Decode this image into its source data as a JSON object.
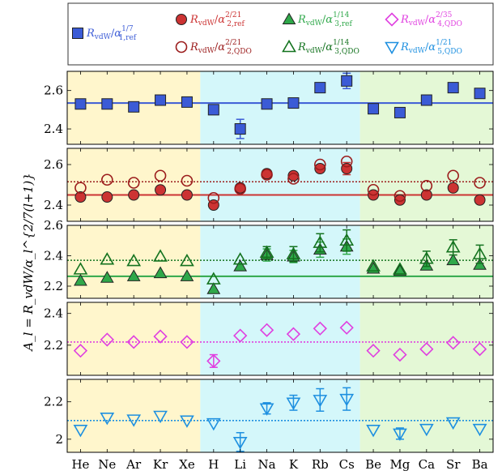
{
  "chart_data": [
    {
      "type": "scatter",
      "panel": "a",
      "categories": [
        "He",
        "Ne",
        "Ar",
        "Kr",
        "Xe",
        "H",
        "Li",
        "Na",
        "K",
        "Rb",
        "Cs",
        "Be",
        "Mg",
        "Ca",
        "Sr",
        "Ba"
      ],
      "ylim": [
        2.32,
        2.7
      ],
      "yticks": [
        2.4,
        2.6
      ],
      "series": [
        {
          "name": "R_vdW/α_{1,ref}^{1/7}",
          "marker": "square-filled",
          "color": "#3b5bd6",
          "values": [
            2.53,
            2.53,
            2.515,
            2.55,
            2.54,
            2.5,
            2.4,
            2.53,
            2.535,
            2.615,
            2.65,
            2.505,
            2.485,
            2.55,
            2.615,
            2.585
          ],
          "errors": [
            0.012,
            0.012,
            0.012,
            0.012,
            0.012,
            0.015,
            0.05,
            0.01,
            0.01,
            0.02,
            0.04,
            0.015,
            0.012,
            0.01,
            0.015,
            0.015
          ],
          "mean": 2.535
        }
      ]
    },
    {
      "type": "scatter",
      "panel": "b",
      "categories": [
        "He",
        "Ne",
        "Ar",
        "Kr",
        "Xe",
        "H",
        "Li",
        "Na",
        "K",
        "Rb",
        "Cs",
        "Be",
        "Mg",
        "Ca",
        "Sr",
        "Ba"
      ],
      "ylim": [
        2.32,
        2.68
      ],
      "yticks": [
        2.4,
        2.6
      ],
      "series": [
        {
          "name": "R_vdW/α_{2,ref}^{2/21}",
          "marker": "circle-filled",
          "color": "#cc3333",
          "values": [
            2.44,
            2.44,
            2.45,
            2.475,
            2.45,
            2.4,
            2.485,
            2.555,
            2.545,
            2.58,
            2.58,
            2.45,
            2.425,
            2.45,
            2.485,
            2.425
          ],
          "errors": [
            0.01,
            0.01,
            0.01,
            0.01,
            0.01,
            0.015,
            0.015,
            0.02,
            0.02,
            0.02,
            0.03,
            0.01,
            0.01,
            0.01,
            0.01,
            0.01
          ],
          "mean": 2.45
        },
        {
          "name": "R_vdW/α_{2,QDO}^{2/21}",
          "marker": "circle-open",
          "color": "#9b1c1c",
          "values": [
            2.485,
            2.525,
            2.51,
            2.545,
            2.52,
            2.435,
            2.48,
            2.55,
            2.53,
            2.6,
            2.615,
            2.475,
            2.445,
            2.495,
            2.545,
            2.51
          ],
          "errors": [
            0.005,
            0.005,
            0.005,
            0.005,
            0.005,
            0.01,
            0.01,
            0.02,
            0.02,
            0.02,
            0.02,
            0.005,
            0.005,
            0.005,
            0.005,
            0.005
          ],
          "mean": 2.515
        }
      ]
    },
    {
      "type": "scatter",
      "panel": "c",
      "categories": [
        "He",
        "Ne",
        "Ar",
        "Kr",
        "Xe",
        "H",
        "Li",
        "Na",
        "K",
        "Rb",
        "Cs",
        "Be",
        "Mg",
        "Ca",
        "Sr",
        "Ba"
      ],
      "ylim": [
        2.12,
        2.6
      ],
      "yticks": [
        2.2,
        2.4,
        2.6
      ],
      "series": [
        {
          "name": "R_vdW/α_{3,ref}^{1/14}",
          "marker": "triangle-up-filled",
          "color": "#2fa84a",
          "values": [
            2.235,
            2.255,
            2.265,
            2.285,
            2.265,
            2.18,
            2.33,
            2.405,
            2.395,
            2.44,
            2.46,
            2.315,
            2.3,
            2.335,
            2.37,
            2.34
          ],
          "errors": [
            0.01,
            0.01,
            0.01,
            0.01,
            0.01,
            0.015,
            0.02,
            0.04,
            0.04,
            0.05,
            0.05,
            0.01,
            0.01,
            0.01,
            0.01,
            0.01
          ],
          "mean": 2.265
        },
        {
          "name": "R_vdW/α_{3,QDO}^{1/14}",
          "marker": "triangle-up-open",
          "color": "#14731f",
          "values": [
            2.31,
            2.375,
            2.365,
            2.395,
            2.365,
            2.245,
            2.375,
            2.42,
            2.41,
            2.485,
            2.5,
            2.33,
            2.31,
            2.38,
            2.455,
            2.41
          ],
          "errors": [
            0.01,
            0.01,
            0.01,
            0.01,
            0.01,
            0.015,
            0.02,
            0.04,
            0.05,
            0.06,
            0.07,
            0.02,
            0.02,
            0.05,
            0.05,
            0.06
          ],
          "mean": 2.37
        }
      ]
    },
    {
      "type": "scatter",
      "panel": "d",
      "categories": [
        "He",
        "Ne",
        "Ar",
        "Kr",
        "Xe",
        "H",
        "Li",
        "Na",
        "K",
        "Rb",
        "Cs",
        "Be",
        "Mg",
        "Ca",
        "Sr",
        "Ba"
      ],
      "ylim": [
        2.01,
        2.47
      ],
      "yticks": [
        2.2,
        2.4
      ],
      "series": [
        {
          "name": "R_vdW/α_{4,QDO}^{2/35}",
          "marker": "diamond-open",
          "color": "#e040e0",
          "values": [
            2.165,
            2.235,
            2.22,
            2.255,
            2.22,
            2.1,
            2.26,
            2.295,
            2.27,
            2.305,
            2.31,
            2.165,
            2.14,
            2.175,
            2.215,
            2.175
          ],
          "errors": [
            0.02,
            0.01,
            0.01,
            0.01,
            0.01,
            0.04,
            0.02,
            0.03,
            0.02,
            0.03,
            0.03,
            0.02,
            0.03,
            0.02,
            0.01,
            0.02
          ],
          "mean": 2.22
        }
      ]
    },
    {
      "type": "scatter",
      "panel": "e",
      "categories": [
        "He",
        "Ne",
        "Ar",
        "Kr",
        "Xe",
        "H",
        "Li",
        "Na",
        "K",
        "Rb",
        "Cs",
        "Be",
        "Mg",
        "Ca",
        "Sr",
        "Ba"
      ],
      "ylim": [
        1.93,
        2.32
      ],
      "yticks": [
        2.0,
        2.2
      ],
      "series": [
        {
          "name": "R_vdW/α_{5,QDO}^{1/21}",
          "marker": "triangle-down-open",
          "color": "#1e90e0",
          "values": [
            2.05,
            2.115,
            2.105,
            2.125,
            2.1,
            2.085,
            1.985,
            2.165,
            2.195,
            2.21,
            2.215,
            2.05,
            2.03,
            2.055,
            2.09,
            2.055
          ],
          "errors": [
            0.02,
            0.02,
            0.02,
            0.02,
            0.02,
            0.01,
            0.05,
            0.03,
            0.04,
            0.06,
            0.06,
            0.02,
            0.03,
            0.02,
            0.01,
            0.02
          ],
          "mean": 2.1
        }
      ]
    }
  ],
  "ylabel": "A_l = R_vdW/α_l^{2/7(l+1)}",
  "yticklabels": {
    "a": [
      "2.4",
      "2.6"
    ],
    "b": [
      "2.4",
      "2.6"
    ],
    "c": [
      "2.2",
      "2.4",
      "2.6"
    ],
    "d": [
      "2.2",
      "2.4"
    ],
    "e": [
      "2",
      "2.2"
    ]
  },
  "group_colors": [
    "#fff6cc",
    "#d4f7fa",
    "#e4f8d6"
  ],
  "legend": {
    "entries": [
      {
        "base": "R",
        "sub": "vdW",
        "exp": "1/7",
        "asub": "1,ref",
        "color": "#3b5bd6",
        "marker": "square-filled"
      },
      {
        "base": "R",
        "sub": "vdW",
        "exp": "2/21",
        "asub": "2,ref",
        "color": "#cc3333",
        "marker": "circle-filled"
      },
      {
        "base": "R",
        "sub": "vdW",
        "exp": "2/21",
        "asub": "2,QDO",
        "color": "#9b1c1c",
        "marker": "circle-open"
      },
      {
        "base": "R",
        "sub": "vdW",
        "exp": "1/14",
        "asub": "3,ref",
        "color": "#2fa84a",
        "marker": "triangle-up-filled"
      },
      {
        "base": "R",
        "sub": "vdW",
        "exp": "1/14",
        "asub": "3,QDO",
        "color": "#14731f",
        "marker": "triangle-up-open"
      },
      {
        "base": "R",
        "sub": "vdW",
        "exp": "2/35",
        "asub": "4,QDO",
        "color": "#e040e0",
        "marker": "diamond-open"
      },
      {
        "base": "R",
        "sub": "vdW",
        "exp": "1/21",
        "asub": "5,QDO",
        "color": "#1e90e0",
        "marker": "triangle-down-open"
      }
    ]
  }
}
